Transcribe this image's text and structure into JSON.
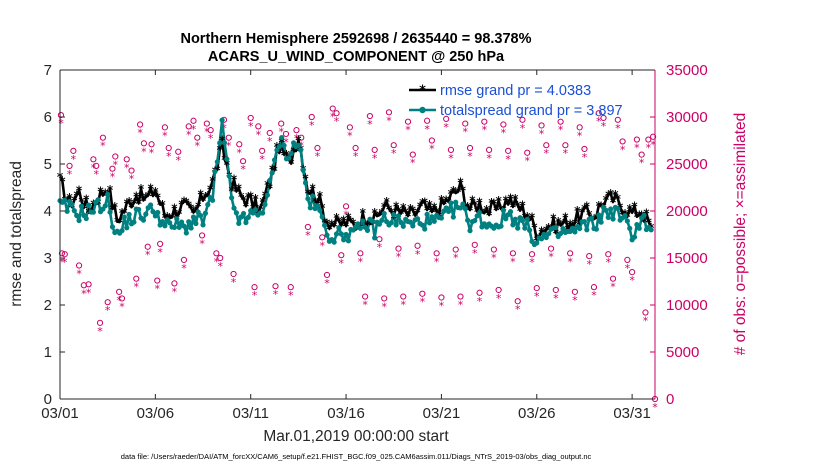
{
  "chart_data": {
    "type": "line",
    "title_line1": "Northern Hemisphere 2592698 / 2635440 = 98.378%",
    "title_line2": "ACARS_U_WIND_COMPONENT @ 250 hPa",
    "xlabel": "Mar.01,2019 00:00:00 start",
    "ylabel_left": "rmse and totalspread",
    "ylabel_right": "# of obs: o=possible; ×=assimilated",
    "xlim": [
      1,
      32.2
    ],
    "ylim_left": [
      0,
      7
    ],
    "ylim_right": [
      0,
      35000
    ],
    "x_ticks": [
      1,
      6,
      11,
      16,
      21,
      26,
      31
    ],
    "x_tick_labels": [
      "03/01",
      "03/06",
      "03/11",
      "03/16",
      "03/21",
      "03/26",
      "03/31"
    ],
    "y_ticks_left": [
      "0",
      "1",
      "2",
      "3",
      "4",
      "5",
      "6",
      "7"
    ],
    "y_ticks_right": [
      "0",
      "5000",
      "10000",
      "15000",
      "20000",
      "25000",
      "30000",
      "35000"
    ],
    "legend": [
      {
        "name": "rmse grand pr = 4.0383",
        "color": "#000000"
      },
      {
        "name": "totalspread grand pr = 3.897",
        "color": "#008080"
      }
    ],
    "footnote": "data file: /Users/raeder/DAI/ATM_forcXX/CAM6_setup/f.e21.FHIST_BGC.f09_025.CAM6assim.011/Diags_NTrS_2019-03/obs_diag_output.nc",
    "rmse_anchors": [
      [
        1.0,
        4.6
      ],
      [
        1.5,
        4.15
      ],
      [
        2.0,
        4.4
      ],
      [
        2.5,
        4.0
      ],
      [
        3.0,
        4.3
      ],
      [
        3.5,
        4.5
      ],
      [
        4.0,
        3.8
      ],
      [
        4.5,
        4.1
      ],
      [
        5.0,
        4.35
      ],
      [
        5.5,
        4.25
      ],
      [
        6.0,
        4.45
      ],
      [
        6.5,
        3.9
      ],
      [
        7.0,
        4.0
      ],
      [
        7.5,
        4.1
      ],
      [
        8.0,
        3.9
      ],
      [
        8.5,
        4.3
      ],
      [
        9.0,
        4.6
      ],
      [
        9.5,
        5.35
      ],
      [
        10.0,
        4.6
      ],
      [
        10.5,
        4.3
      ],
      [
        11.0,
        4.2
      ],
      [
        11.5,
        4.0
      ],
      [
        12.0,
        4.6
      ],
      [
        12.5,
        5.4
      ],
      [
        13.0,
        5.0
      ],
      [
        13.5,
        5.6
      ],
      [
        14.0,
        4.5
      ],
      [
        14.5,
        4.3
      ],
      [
        15.0,
        3.8
      ],
      [
        15.5,
        3.7
      ],
      [
        16.0,
        3.75
      ],
      [
        16.5,
        3.7
      ],
      [
        17.0,
        3.9
      ],
      [
        17.5,
        3.8
      ],
      [
        18.0,
        4.1
      ],
      [
        18.5,
        4.0
      ],
      [
        19.0,
        3.95
      ],
      [
        19.5,
        3.9
      ],
      [
        20.0,
        4.1
      ],
      [
        20.5,
        3.95
      ],
      [
        21.0,
        4.1
      ],
      [
        21.5,
        4.3
      ],
      [
        22.0,
        4.5
      ],
      [
        22.5,
        4.05
      ],
      [
        23.0,
        4.15
      ],
      [
        23.5,
        4.0
      ],
      [
        24.0,
        4.05
      ],
      [
        24.5,
        4.25
      ],
      [
        25.0,
        4.1
      ],
      [
        25.5,
        3.95
      ],
      [
        26.0,
        3.55
      ],
      [
        26.5,
        3.65
      ],
      [
        27.0,
        3.7
      ],
      [
        27.5,
        3.75
      ],
      [
        28.0,
        3.8
      ],
      [
        28.5,
        3.95
      ],
      [
        29.0,
        3.9
      ],
      [
        29.5,
        4.2
      ],
      [
        30.0,
        4.25
      ],
      [
        30.5,
        4.1
      ],
      [
        31.0,
        3.95
      ],
      [
        31.5,
        4.0
      ],
      [
        32.0,
        3.65
      ]
    ],
    "spread_anchors": [
      [
        1.0,
        4.1
      ],
      [
        1.5,
        4.05
      ],
      [
        2.0,
        3.95
      ],
      [
        2.5,
        4.0
      ],
      [
        3.0,
        4.1
      ],
      [
        3.5,
        4.2
      ],
      [
        4.0,
        3.45
      ],
      [
        4.5,
        3.8
      ],
      [
        5.0,
        3.9
      ],
      [
        5.5,
        3.95
      ],
      [
        6.0,
        4.05
      ],
      [
        6.5,
        3.65
      ],
      [
        7.0,
        3.7
      ],
      [
        7.5,
        3.65
      ],
      [
        8.0,
        3.8
      ],
      [
        8.5,
        3.8
      ],
      [
        9.0,
        4.3
      ],
      [
        9.5,
        5.8
      ],
      [
        10.0,
        4.2
      ],
      [
        10.5,
        3.75
      ],
      [
        11.0,
        3.9
      ],
      [
        11.5,
        3.95
      ],
      [
        12.0,
        4.5
      ],
      [
        12.5,
        5.5
      ],
      [
        13.0,
        5.2
      ],
      [
        13.5,
        5.5
      ],
      [
        14.0,
        4.25
      ],
      [
        14.5,
        4.05
      ],
      [
        15.0,
        3.55
      ],
      [
        15.5,
        3.45
      ],
      [
        16.0,
        3.55
      ],
      [
        16.5,
        3.5
      ],
      [
        17.0,
        3.75
      ],
      [
        17.5,
        3.6
      ],
      [
        18.0,
        3.85
      ],
      [
        18.5,
        3.8
      ],
      [
        19.0,
        3.75
      ],
      [
        19.5,
        3.7
      ],
      [
        20.0,
        3.8
      ],
      [
        20.5,
        3.75
      ],
      [
        21.0,
        3.8
      ],
      [
        21.5,
        4.0
      ],
      [
        22.0,
        4.1
      ],
      [
        22.5,
        3.75
      ],
      [
        23.0,
        3.85
      ],
      [
        23.5,
        3.7
      ],
      [
        24.0,
        3.75
      ],
      [
        24.5,
        3.95
      ],
      [
        25.0,
        3.8
      ],
      [
        25.5,
        3.65
      ],
      [
        26.0,
        3.35
      ],
      [
        26.5,
        3.45
      ],
      [
        27.0,
        3.5
      ],
      [
        27.5,
        3.55
      ],
      [
        28.0,
        3.55
      ],
      [
        28.5,
        3.7
      ],
      [
        29.0,
        3.7
      ],
      [
        29.5,
        3.95
      ],
      [
        30.0,
        4.0
      ],
      [
        30.5,
        3.85
      ],
      [
        31.0,
        3.5
      ],
      [
        31.5,
        3.85
      ],
      [
        32.0,
        3.6
      ]
    ],
    "obs_possible_points": [
      [
        1.05,
        30200
      ],
      [
        1.1,
        15500
      ],
      [
        1.25,
        15400
      ],
      [
        1.5,
        24800
      ],
      [
        1.7,
        26400
      ],
      [
        2.0,
        14200
      ],
      [
        2.25,
        12100
      ],
      [
        2.5,
        12200
      ],
      [
        2.75,
        25500
      ],
      [
        2.9,
        24800
      ],
      [
        3.1,
        8100
      ],
      [
        3.25,
        27800
      ],
      [
        3.5,
        10300
      ],
      [
        3.75,
        24500
      ],
      [
        3.9,
        25800
      ],
      [
        4.1,
        11400
      ],
      [
        4.25,
        10700
      ],
      [
        4.5,
        25500
      ],
      [
        4.75,
        24300
      ],
      [
        5.0,
        12800
      ],
      [
        5.2,
        29200
      ],
      [
        5.4,
        27200
      ],
      [
        5.6,
        16200
      ],
      [
        5.8,
        27100
      ],
      [
        6.1,
        12600
      ],
      [
        6.25,
        16500
      ],
      [
        6.5,
        28900
      ],
      [
        6.7,
        26700
      ],
      [
        7.0,
        12300
      ],
      [
        7.2,
        26300
      ],
      [
        7.5,
        14800
      ],
      [
        7.75,
        29000
      ],
      [
        8.0,
        29600
      ],
      [
        8.2,
        27800
      ],
      [
        8.45,
        17400
      ],
      [
        8.7,
        29300
      ],
      [
        8.9,
        28600
      ],
      [
        9.2,
        15500
      ],
      [
        9.4,
        15000
      ],
      [
        9.6,
        29700
      ],
      [
        9.85,
        27800
      ],
      [
        10.1,
        13300
      ],
      [
        10.4,
        27100
      ],
      [
        10.6,
        25300
      ],
      [
        11.0,
        29900
      ],
      [
        11.2,
        11900
      ],
      [
        11.4,
        29000
      ],
      [
        11.6,
        26400
      ],
      [
        12.0,
        28300
      ],
      [
        12.3,
        12000
      ],
      [
        12.6,
        29300
      ],
      [
        12.85,
        28200
      ],
      [
        13.1,
        11900
      ],
      [
        13.4,
        28600
      ],
      [
        13.65,
        27800
      ],
      [
        14.0,
        18300
      ],
      [
        14.2,
        30000
      ],
      [
        14.5,
        26700
      ],
      [
        14.75,
        17200
      ],
      [
        15.0,
        13200
      ],
      [
        15.3,
        30900
      ],
      [
        15.5,
        30400
      ],
      [
        15.75,
        15300
      ],
      [
        16.0,
        20500
      ],
      [
        16.2,
        28900
      ],
      [
        16.5,
        26700
      ],
      [
        16.75,
        15500
      ],
      [
        17.0,
        10900
      ],
      [
        17.25,
        30100
      ],
      [
        17.5,
        26500
      ],
      [
        17.75,
        17000
      ],
      [
        18.0,
        10700
      ],
      [
        18.25,
        30500
      ],
      [
        18.5,
        27000
      ],
      [
        18.75,
        16000
      ],
      [
        19.0,
        10900
      ],
      [
        19.25,
        29500
      ],
      [
        19.5,
        26000
      ],
      [
        19.75,
        16300
      ],
      [
        20.0,
        11200
      ],
      [
        20.25,
        29600
      ],
      [
        20.5,
        27500
      ],
      [
        20.75,
        15500
      ],
      [
        21.0,
        10800
      ],
      [
        21.25,
        29800
      ],
      [
        21.5,
        26500
      ],
      [
        21.75,
        15900
      ],
      [
        22.0,
        10900
      ],
      [
        22.25,
        29300
      ],
      [
        22.5,
        26700
      ],
      [
        22.75,
        16400
      ],
      [
        23.0,
        11300
      ],
      [
        23.25,
        29500
      ],
      [
        23.5,
        26500
      ],
      [
        23.75,
        15900
      ],
      [
        24.0,
        11600
      ],
      [
        24.25,
        29200
      ],
      [
        24.5,
        26400
      ],
      [
        24.75,
        15500
      ],
      [
        25.0,
        10400
      ],
      [
        25.25,
        29700
      ],
      [
        25.5,
        26200
      ],
      [
        25.75,
        15400
      ],
      [
        26.0,
        11800
      ],
      [
        26.25,
        29100
      ],
      [
        26.5,
        27000
      ],
      [
        26.75,
        16000
      ],
      [
        27.0,
        11600
      ],
      [
        27.25,
        29500
      ],
      [
        27.5,
        27000
      ],
      [
        27.75,
        15500
      ],
      [
        28.0,
        11400
      ],
      [
        28.25,
        28900
      ],
      [
        28.5,
        26600
      ],
      [
        28.75,
        15200
      ],
      [
        29.0,
        11900
      ],
      [
        29.25,
        30400
      ],
      [
        29.5,
        29900
      ],
      [
        29.75,
        15400
      ],
      [
        30.0,
        12800
      ],
      [
        30.25,
        29700
      ],
      [
        30.5,
        27400
      ],
      [
        30.75,
        14800
      ],
      [
        31.0,
        13500
      ],
      [
        31.25,
        27600
      ],
      [
        31.5,
        26000
      ],
      [
        31.7,
        9200
      ],
      [
        31.85,
        27600
      ],
      [
        32.1,
        27900
      ],
      [
        32.2,
        0
      ]
    ]
  }
}
